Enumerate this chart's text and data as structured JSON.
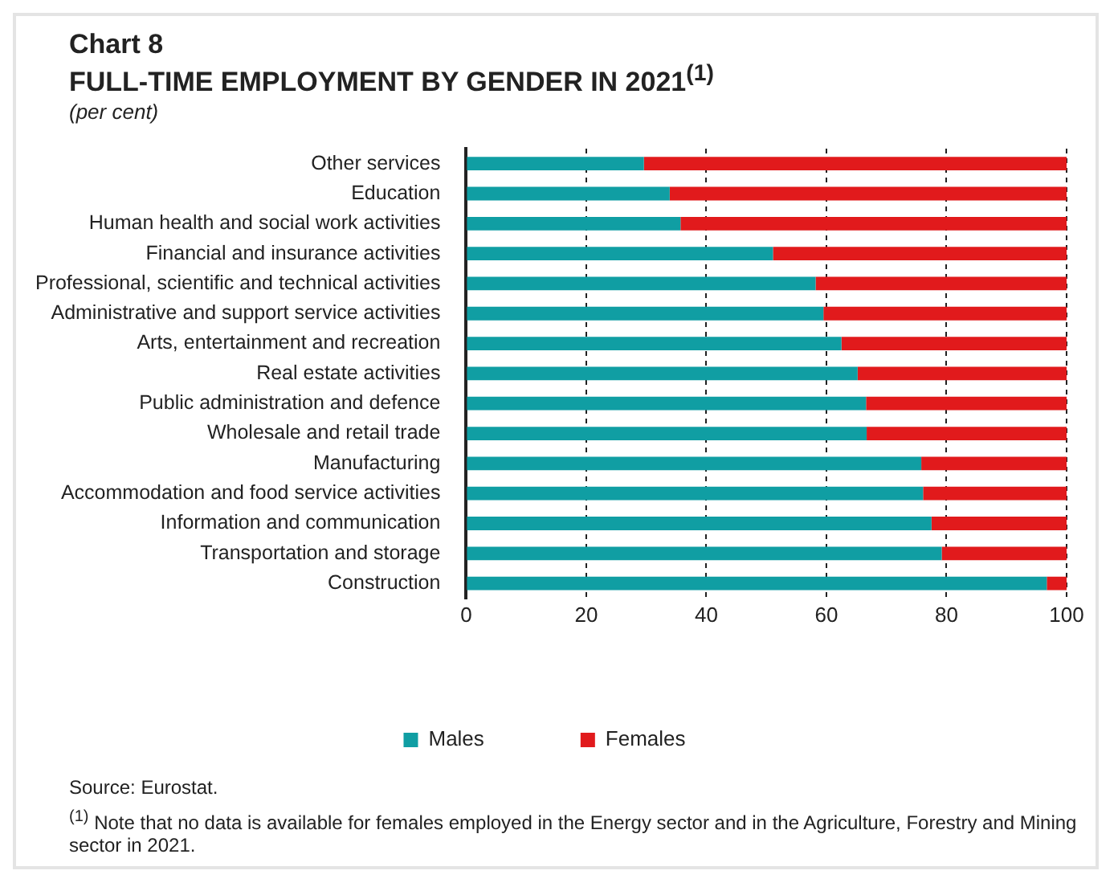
{
  "chart_data": {
    "type": "bar",
    "orientation": "horizontal",
    "stacked": true,
    "title": "Chart 8",
    "subtitle": "FULL-TIME EMPLOYMENT BY GENDER IN 2021$^{(1)}$",
    "categories": [
      "Other services",
      "Education",
      "Human health and social work activities",
      "Financial and insurance activities",
      "Professional, scientific and technical activities",
      "Administrative and support service activities",
      "Arts, entertainment and recreation",
      "Real estate activities",
      "Public administration and defence",
      "Wholesale and retail trade",
      "Manufacturing",
      "Accommodation and food service activities",
      "Information and communication",
      "Transportation and storage",
      "Construction"
    ],
    "series": [
      {
        "name": "Males",
        "color": "#109ea3",
        "values": [
          29.6,
          33.9,
          35.7,
          51.1,
          58.2,
          59.5,
          62.5,
          65.2,
          66.6,
          66.7,
          75.8,
          76.1,
          77.5,
          79.2,
          96.7
        ]
      },
      {
        "name": "Females",
        "color": "#e11a1c",
        "values": [
          70.4,
          66.1,
          64.3,
          48.9,
          41.8,
          40.5,
          37.5,
          34.8,
          33.4,
          33.3,
          24.2,
          23.9,
          22.5,
          20.8,
          3.3
        ]
      }
    ],
    "xlim": [
      0,
      100
    ],
    "xticks": [
      0,
      20,
      40,
      60,
      80,
      100
    ],
    "grid": "x",
    "legend": "bottom",
    "annotations": [
      "(per cent)",
      "Source: Eurostat.",
      "$^{(1)}$ Note that no data is available for females employed in the Energy sector and in the Agriculture, Forestry and Mining sector in 2021."
    ]
  }
}
